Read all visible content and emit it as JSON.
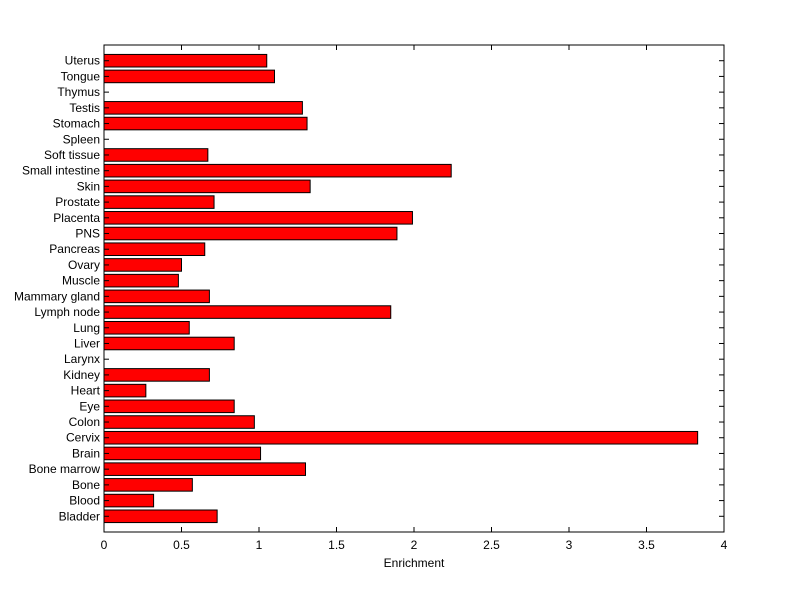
{
  "chart_data": {
    "type": "bar",
    "orientation": "horizontal",
    "title": "",
    "xlabel": "Enrichment",
    "ylabel": "",
    "xlim": [
      0,
      4
    ],
    "xticks": [
      "0",
      "0.5",
      "1",
      "1.5",
      "2",
      "2.5",
      "3",
      "3.5",
      "4"
    ],
    "grid": false,
    "legend": "none",
    "bar_color": "#ff0000",
    "categories": [
      "Bladder",
      "Blood",
      "Bone",
      "Bone marrow",
      "Brain",
      "Cervix",
      "Colon",
      "Eye",
      "Heart",
      "Kidney",
      "Larynx",
      "Liver",
      "Lung",
      "Lymph node",
      "Mammary gland",
      "Muscle",
      "Ovary",
      "Pancreas",
      "PNS",
      "Placenta",
      "Prostate",
      "Skin",
      "Small intestine",
      "Soft tissue",
      "Spleen",
      "Stomach",
      "Testis",
      "Thymus",
      "Tongue",
      "Uterus"
    ],
    "values": [
      0.73,
      0.32,
      0.57,
      1.3,
      1.01,
      3.83,
      0.97,
      0.84,
      0.27,
      0.68,
      0,
      0.84,
      0.55,
      1.85,
      0.68,
      0.48,
      0.5,
      0.65,
      1.89,
      1.99,
      0.71,
      1.33,
      2.24,
      0.67,
      0,
      1.31,
      1.28,
      0,
      1.1,
      1.05
    ]
  }
}
